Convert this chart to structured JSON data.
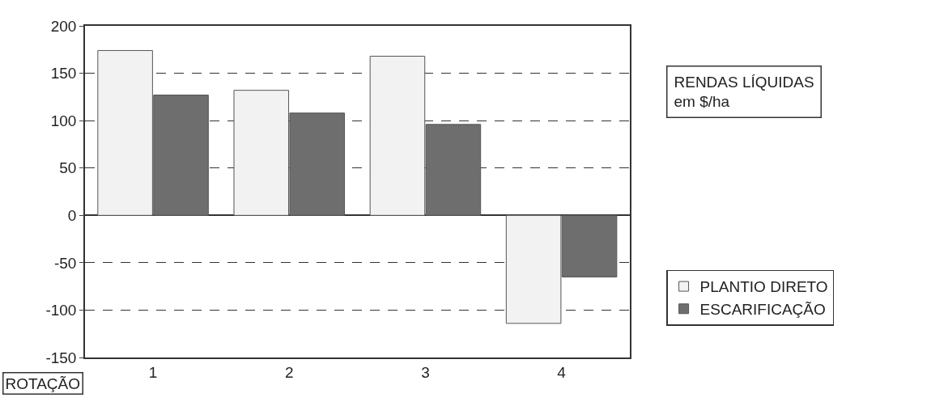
{
  "chart_data": {
    "type": "bar",
    "title": "RENDAS LÍQUIDAS\nem $/ha",
    "xlabel": "ROTAÇÃO",
    "categories": [
      "1",
      "2",
      "3",
      "4"
    ],
    "series": [
      {
        "name": "PLANTIO DIRETO",
        "color": "#f2f2f2",
        "values": [
          174,
          132,
          168,
          -114
        ]
      },
      {
        "name": "ESCARIFICAÇÃO",
        "color": "#6e6e6e",
        "values": [
          127,
          108,
          96,
          -65
        ]
      }
    ],
    "ylim": [
      -150,
      200
    ],
    "yticks": [
      -150,
      -100,
      -50,
      0,
      50,
      100,
      150,
      200
    ],
    "grid": "y",
    "line_style": "dashed",
    "legend": "right"
  }
}
